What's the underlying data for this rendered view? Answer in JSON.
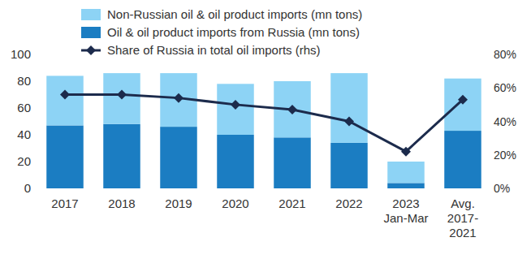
{
  "chart_data": {
    "type": "bar",
    "stacked": true,
    "grid": false,
    "legend": "top-left",
    "categories": [
      "2017",
      "2018",
      "2019",
      "2020",
      "2021",
      "2022",
      "2023\nJan-Mar",
      "Avg.\n2017-\n2021"
    ],
    "ylim": [
      0,
      100
    ],
    "yticks": [
      0,
      20,
      40,
      60,
      80,
      100
    ],
    "y2lim": [
      0,
      80
    ],
    "y2ticks": [
      {
        "value": 0,
        "label": "0%"
      },
      {
        "value": 20,
        "label": "20%"
      },
      {
        "value": 40,
        "label": "40%"
      },
      {
        "value": 60,
        "label": "60%"
      },
      {
        "value": 80,
        "label": "80%"
      }
    ],
    "series": [
      {
        "name": "Non-Russian oil & oil product imports (mn tons)",
        "type": "bar",
        "color": "#8dd3f5",
        "values": [
          37,
          38,
          40,
          38,
          42,
          52,
          16,
          39
        ]
      },
      {
        "name": "Oil & oil product imports from Russia (mn tons)",
        "type": "bar",
        "color": "#1b7dc2",
        "values": [
          47,
          48,
          46,
          40,
          38,
          34,
          4,
          43
        ]
      },
      {
        "name": "Share of Russia in total oil imports (rhs)",
        "type": "line",
        "axis": "y2",
        "color": "#1c2b4c",
        "marker": "diamond",
        "values": [
          56,
          56,
          54,
          50,
          47,
          40,
          22,
          53
        ]
      }
    ]
  }
}
